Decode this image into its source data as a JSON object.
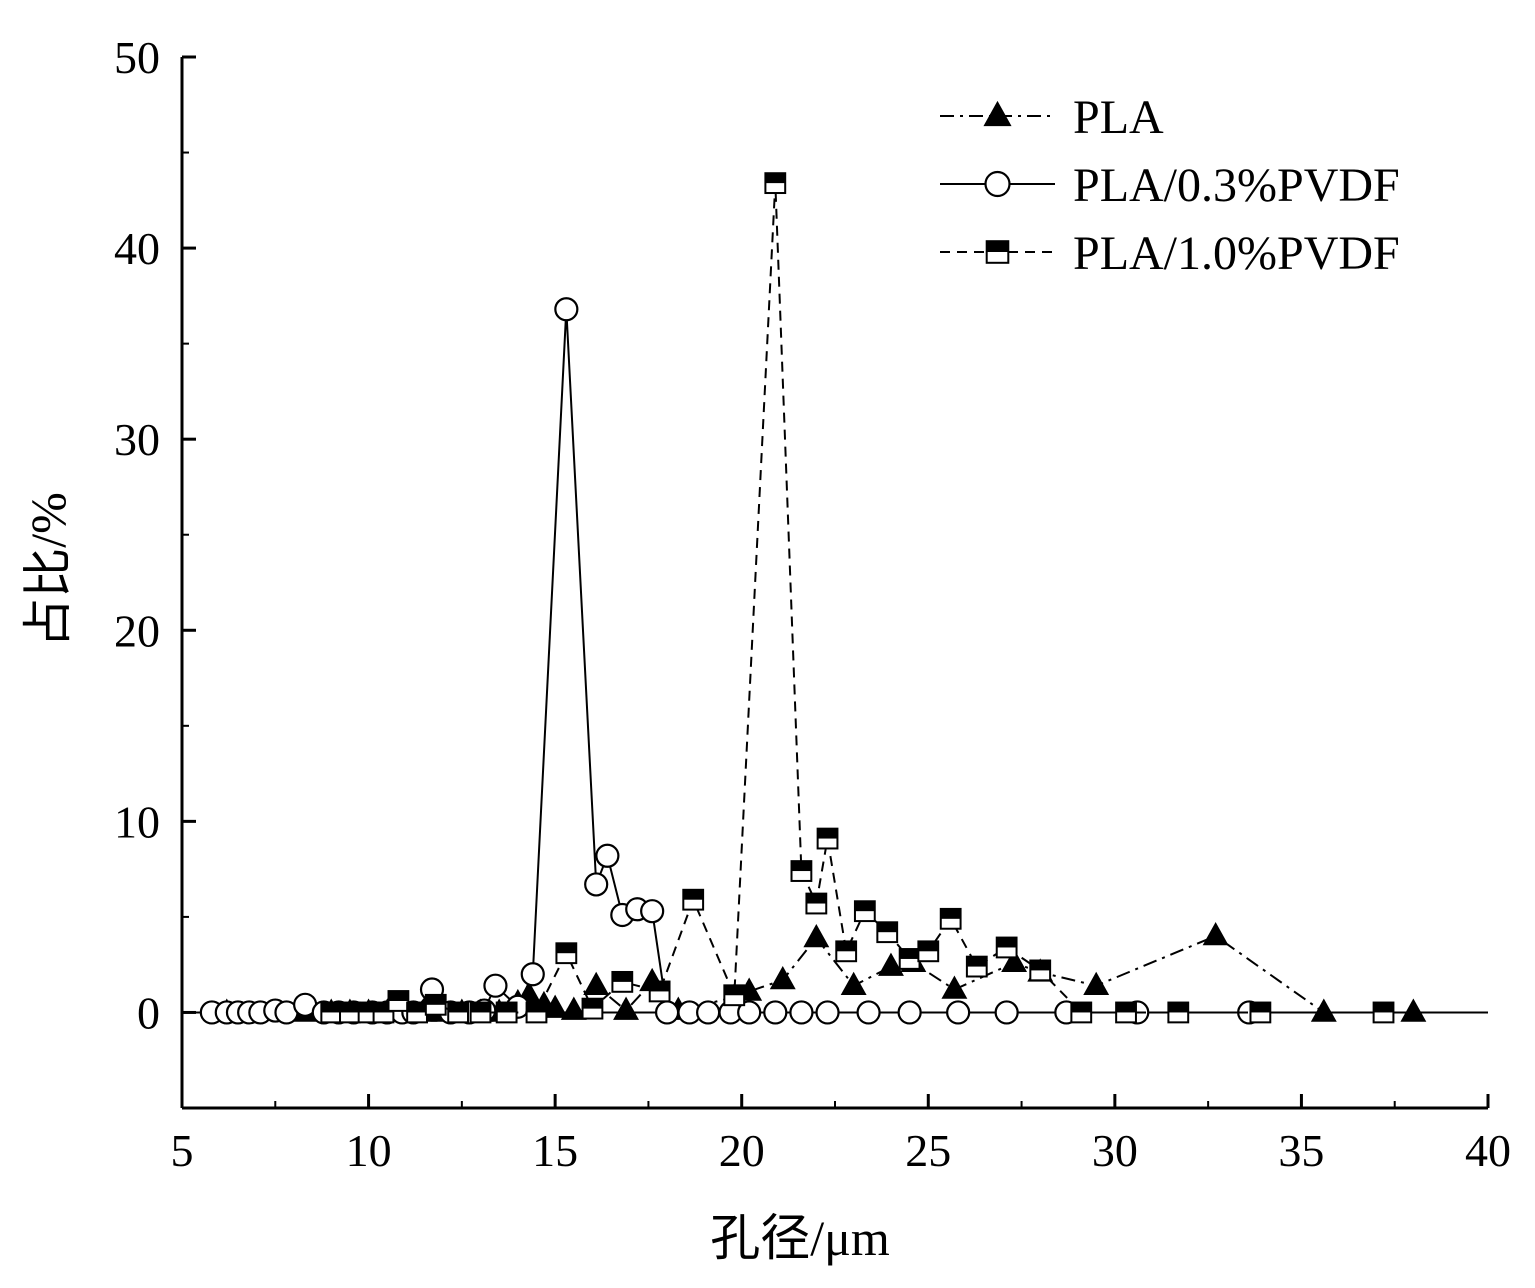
{
  "chart_data": {
    "type": "line",
    "xlabel": "孔径/μm",
    "ylabel": "占比/%",
    "xlim": [
      5,
      40
    ],
    "ylim": [
      -5,
      50
    ],
    "xticks": [
      5,
      10,
      15,
      20,
      25,
      30,
      35,
      40
    ],
    "yticks": [
      0,
      10,
      20,
      30,
      40,
      50
    ],
    "x_tick_labels": [
      "5",
      "10",
      "15",
      "20",
      "25",
      "30",
      "35",
      "40"
    ],
    "y_tick_labels": [
      "0",
      "10",
      "20",
      "30",
      "40",
      "50"
    ],
    "grid": false,
    "legend_position": "top-right",
    "series": [
      {
        "name": "PLA",
        "marker": "filled-triangle",
        "line_style": "dash-dot",
        "color": "#000000",
        "x": [
          6.2,
          8.3,
          9.0,
          9.5,
          10.0,
          10.5,
          11.0,
          11.5,
          12.0,
          12.5,
          13.0,
          13.5,
          14.0,
          14.3,
          14.7,
          15.0,
          15.5,
          16.1,
          16.9,
          17.6,
          18.3,
          19.8,
          20.2,
          21.1,
          22.0,
          23.0,
          24.0,
          24.6,
          25.7,
          27.3,
          28.0,
          29.5,
          32.7,
          35.6,
          38.0
        ],
        "y": [
          0,
          0,
          0,
          0,
          0,
          0,
          0,
          0,
          0,
          0,
          0,
          0,
          0.5,
          0.9,
          0.4,
          0.2,
          0.1,
          1.4,
          0.1,
          1.6,
          0.1,
          0.8,
          1.1,
          1.7,
          3.9,
          1.4,
          2.4,
          2.6,
          1.2,
          2.6,
          2.1,
          1.4,
          4.0,
          0,
          0
        ]
      },
      {
        "name": "PLA/0.3%PVDF",
        "marker": "hollow-circle",
        "line_style": "solid",
        "color": "#000000",
        "x": [
          5.8,
          6.2,
          6.5,
          6.8,
          7.1,
          7.5,
          7.8,
          8.3,
          8.8,
          9.2,
          9.6,
          10.1,
          10.5,
          10.9,
          11.2,
          11.7,
          12.2,
          12.7,
          13.1,
          13.4,
          14.0,
          14.4,
          15.3,
          16.1,
          16.4,
          16.8,
          17.2,
          17.6,
          18.0,
          18.6,
          19.1,
          19.7,
          20.2,
          20.9,
          21.6,
          22.3,
          23.4,
          24.5,
          25.8,
          27.1,
          28.7,
          30.6,
          33.6
        ],
        "y": [
          0,
          0,
          0,
          0,
          0,
          0.1,
          0,
          0.4,
          0,
          0,
          0,
          0,
          0,
          0,
          0,
          1.2,
          0,
          0,
          0.1,
          1.4,
          0.3,
          2.0,
          36.8,
          6.7,
          8.2,
          5.1,
          5.4,
          5.3,
          0,
          0,
          0,
          0,
          0,
          0,
          0,
          0,
          0,
          0,
          0,
          0,
          0,
          0,
          0
        ]
      },
      {
        "name": "PLA/1.0%PVDF",
        "marker": "half-filled-square",
        "line_style": "dashed",
        "color": "#000000",
        "x": [
          9.0,
          9.5,
          10.0,
          10.4,
          10.8,
          11.3,
          11.8,
          12.4,
          13.0,
          13.7,
          14.5,
          15.3,
          16.0,
          16.8,
          17.8,
          18.7,
          19.8,
          20.9,
          21.6,
          22.0,
          22.3,
          22.8,
          23.3,
          23.9,
          24.5,
          25.0,
          25.6,
          26.3,
          27.1,
          28.0,
          29.1,
          30.3,
          31.7,
          33.9,
          37.2
        ],
        "y": [
          0,
          0,
          0,
          0,
          0.6,
          0,
          0.4,
          0,
          0,
          0,
          0,
          3.1,
          0.2,
          1.6,
          1.1,
          5.9,
          0.9,
          43.4,
          7.4,
          5.7,
          9.1,
          3.2,
          5.3,
          4.2,
          2.8,
          3.2,
          4.9,
          2.4,
          3.4,
          2.2,
          0,
          0,
          0,
          0,
          0
        ]
      }
    ]
  }
}
